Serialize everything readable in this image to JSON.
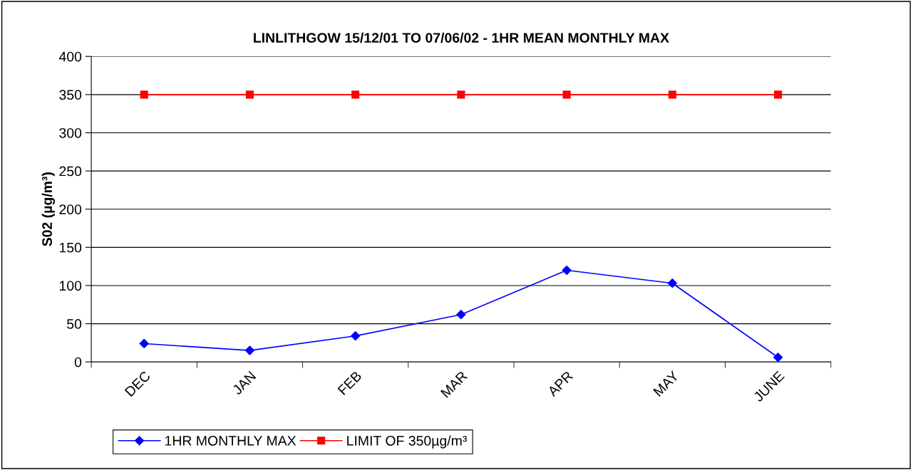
{
  "chart_data": {
    "type": "line",
    "title": "LINLITHGOW 15/12/01 TO 07/06/02 - 1HR MEAN MONTHLY MAX",
    "ylabel": "S02 (µg/m³)",
    "categories": [
      "DEC",
      "JAN",
      "FEB",
      "MAR",
      "APR",
      "MAY",
      "JUNE"
    ],
    "series": [
      {
        "name": "1HR MONTHLY MAX",
        "color": "#0000ff",
        "marker": "diamond",
        "values": [
          24,
          15,
          34,
          62,
          120,
          103,
          6
        ]
      },
      {
        "name": "LIMIT OF 350µg/m³",
        "color": "#ff0000",
        "marker": "square",
        "values": [
          350,
          350,
          350,
          350,
          350,
          350,
          350
        ]
      }
    ],
    "ylim": [
      0,
      400
    ],
    "yticks": [
      0,
      50,
      100,
      150,
      200,
      250,
      300,
      350,
      400
    ],
    "grid": "y",
    "legend": "bottom",
    "line_style": "solid"
  }
}
